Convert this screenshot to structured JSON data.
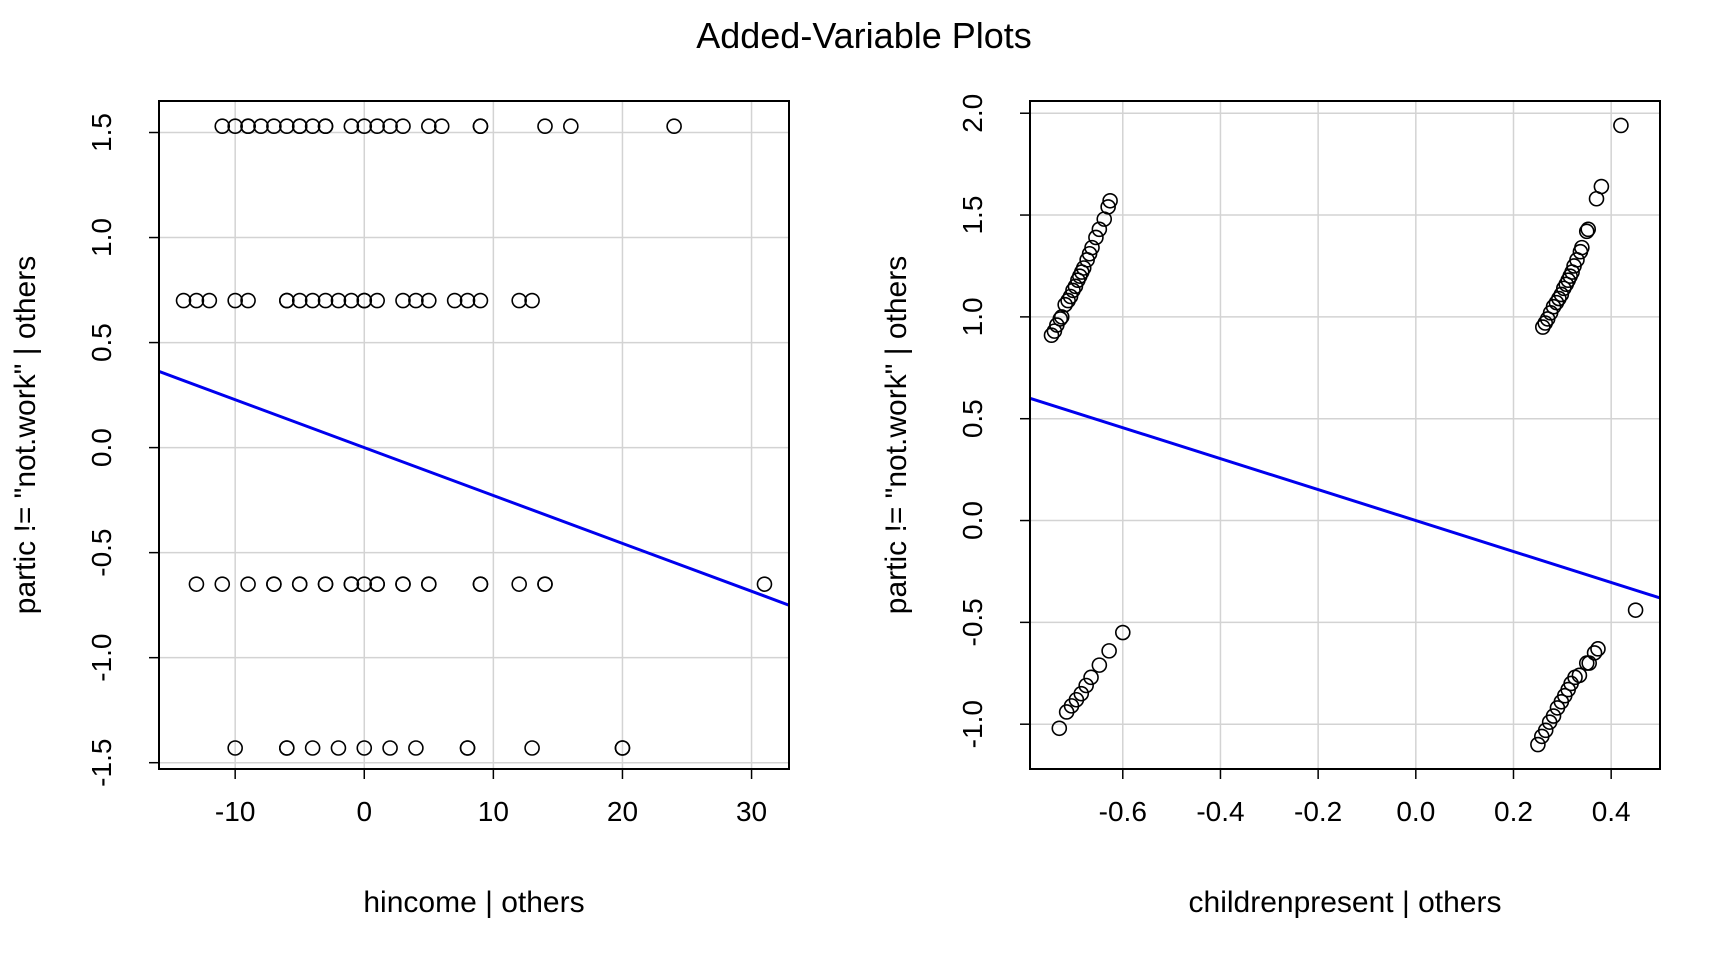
{
  "title": "Added-Variable Plots",
  "colors": {
    "line": "#0000ee",
    "points": "#000000",
    "grid": "#d3d3d3"
  },
  "chart_data": [
    {
      "type": "scatter",
      "xlabel": "hincome | others",
      "ylabel": "partic != \"not.work\"  | others",
      "xlim": [
        -15.9,
        32.9
      ],
      "ylim": [
        -1.53,
        1.65
      ],
      "xticks": [
        -10,
        0,
        10,
        20,
        30
      ],
      "yticks": [
        -1.5,
        -1.0,
        -0.5,
        0.0,
        0.5,
        1.0,
        1.5
      ],
      "xtick_labels": [
        "-10",
        "0",
        "10",
        "20",
        "30"
      ],
      "ytick_labels": [
        "-1.5",
        "-1.0",
        "-0.5",
        "0.0",
        "0.5",
        "1.0",
        "1.5"
      ],
      "grid": true,
      "fit_line": {
        "slope": -0.0228,
        "intercept": 0.0
      },
      "points": [
        [
          -11,
          1.53
        ],
        [
          -10,
          1.53
        ],
        [
          -9,
          1.53
        ],
        [
          -9,
          1.53
        ],
        [
          -8,
          1.53
        ],
        [
          -7,
          1.53
        ],
        [
          -6,
          1.53
        ],
        [
          -5,
          1.53
        ],
        [
          -5,
          1.53
        ],
        [
          -4,
          1.53
        ],
        [
          -3,
          1.53
        ],
        [
          -3,
          1.53
        ],
        [
          -1,
          1.53
        ],
        [
          0,
          1.53
        ],
        [
          1,
          1.53
        ],
        [
          2,
          1.53
        ],
        [
          3,
          1.53
        ],
        [
          5,
          1.53
        ],
        [
          6,
          1.53
        ],
        [
          9,
          1.53
        ],
        [
          9,
          1.53
        ],
        [
          14,
          1.53
        ],
        [
          16,
          1.53
        ],
        [
          24,
          1.53
        ],
        [
          -14,
          0.7
        ],
        [
          -13,
          0.7
        ],
        [
          -12,
          0.7
        ],
        [
          -10,
          0.7
        ],
        [
          -9,
          0.7
        ],
        [
          -6,
          0.7
        ],
        [
          -6,
          0.7
        ],
        [
          -5,
          0.7
        ],
        [
          -4,
          0.7
        ],
        [
          -3,
          0.7
        ],
        [
          -2,
          0.7
        ],
        [
          -1,
          0.7
        ],
        [
          0,
          0.7
        ],
        [
          0,
          0.7
        ],
        [
          1,
          0.7
        ],
        [
          3,
          0.7
        ],
        [
          4,
          0.7
        ],
        [
          5,
          0.7
        ],
        [
          7,
          0.7
        ],
        [
          8,
          0.7
        ],
        [
          9,
          0.7
        ],
        [
          12,
          0.7
        ],
        [
          13,
          0.7
        ],
        [
          -13,
          -0.65
        ],
        [
          -11,
          -0.65
        ],
        [
          -9,
          -0.65
        ],
        [
          -7,
          -0.65
        ],
        [
          -7,
          -0.65
        ],
        [
          -5,
          -0.65
        ],
        [
          -5,
          -0.65
        ],
        [
          -3,
          -0.65
        ],
        [
          -3,
          -0.65
        ],
        [
          -1,
          -0.65
        ],
        [
          -1,
          -0.65
        ],
        [
          0,
          -0.65
        ],
        [
          1,
          -0.65
        ],
        [
          1,
          -0.65
        ],
        [
          3,
          -0.65
        ],
        [
          3,
          -0.65
        ],
        [
          5,
          -0.65
        ],
        [
          5,
          -0.65
        ],
        [
          9,
          -0.65
        ],
        [
          9,
          -0.65
        ],
        [
          12,
          -0.65
        ],
        [
          14,
          -0.65
        ],
        [
          14,
          -0.65
        ],
        [
          31,
          -0.65
        ],
        [
          -10,
          -1.43
        ],
        [
          -6,
          -1.43
        ],
        [
          -6,
          -1.43
        ],
        [
          -4,
          -1.43
        ],
        [
          -2,
          -1.43
        ],
        [
          0,
          -1.43
        ],
        [
          2,
          -1.43
        ],
        [
          4,
          -1.43
        ],
        [
          8,
          -1.43
        ],
        [
          8,
          -1.43
        ],
        [
          13,
          -1.43
        ],
        [
          20,
          -1.43
        ],
        [
          20,
          -1.43
        ]
      ]
    },
    {
      "type": "scatter",
      "xlabel": "childrenpresent | others",
      "ylabel": "partic != \"not.work\"  | others",
      "xlim": [
        -0.79,
        0.5
      ],
      "ylim": [
        -1.22,
        2.06
      ],
      "xticks": [
        -0.6,
        -0.4,
        -0.2,
        0.0,
        0.2,
        0.4
      ],
      "yticks": [
        -1.0,
        -0.5,
        0.0,
        0.5,
        1.0,
        1.5,
        2.0
      ],
      "xtick_labels": [
        "-0.6",
        "-0.4",
        "-0.2",
        "0.0",
        "0.2",
        "0.4"
      ],
      "ytick_labels": [
        "-1.0",
        "-0.5",
        "0.0",
        "0.5",
        "1.0",
        "1.5",
        "2.0"
      ],
      "grid": true,
      "fit_line": {
        "slope": -0.76,
        "intercept": 0.0
      },
      "points": [
        [
          -0.746,
          0.91
        ],
        [
          -0.74,
          0.93
        ],
        [
          -0.735,
          0.96
        ],
        [
          -0.728,
          0.99
        ],
        [
          -0.725,
          1.0
        ],
        [
          -0.718,
          1.06
        ],
        [
          -0.712,
          1.08
        ],
        [
          -0.707,
          1.1
        ],
        [
          -0.702,
          1.13
        ],
        [
          -0.697,
          1.15
        ],
        [
          -0.692,
          1.18
        ],
        [
          -0.688,
          1.2
        ],
        [
          -0.684,
          1.22
        ],
        [
          -0.68,
          1.24
        ],
        [
          -0.673,
          1.28
        ],
        [
          -0.668,
          1.31
        ],
        [
          -0.663,
          1.34
        ],
        [
          -0.655,
          1.39
        ],
        [
          -0.648,
          1.43
        ],
        [
          -0.638,
          1.48
        ],
        [
          -0.63,
          1.54
        ],
        [
          -0.626,
          1.57
        ],
        [
          0.26,
          0.95
        ],
        [
          0.265,
          0.97
        ],
        [
          0.27,
          0.99
        ],
        [
          0.276,
          1.02
        ],
        [
          0.282,
          1.05
        ],
        [
          0.288,
          1.07
        ],
        [
          0.293,
          1.09
        ],
        [
          0.298,
          1.11
        ],
        [
          0.303,
          1.14
        ],
        [
          0.308,
          1.16
        ],
        [
          0.312,
          1.18
        ],
        [
          0.316,
          1.2
        ],
        [
          0.32,
          1.22
        ],
        [
          0.324,
          1.25
        ],
        [
          0.33,
          1.28
        ],
        [
          0.337,
          1.32
        ],
        [
          0.34,
          1.34
        ],
        [
          0.35,
          1.42
        ],
        [
          0.353,
          1.43
        ],
        [
          0.37,
          1.58
        ],
        [
          0.38,
          1.64
        ],
        [
          0.42,
          1.94
        ],
        [
          -0.73,
          -1.02
        ],
        [
          -0.715,
          -0.94
        ],
        [
          -0.705,
          -0.91
        ],
        [
          -0.695,
          -0.88
        ],
        [
          -0.685,
          -0.85
        ],
        [
          -0.675,
          -0.81
        ],
        [
          -0.665,
          -0.77
        ],
        [
          -0.648,
          -0.71
        ],
        [
          -0.628,
          -0.64
        ],
        [
          -0.6,
          -0.55
        ],
        [
          0.25,
          -1.1
        ],
        [
          0.258,
          -1.06
        ],
        [
          0.266,
          -1.03
        ],
        [
          0.274,
          -0.99
        ],
        [
          0.282,
          -0.96
        ],
        [
          0.29,
          -0.92
        ],
        [
          0.298,
          -0.89
        ],
        [
          0.305,
          -0.86
        ],
        [
          0.312,
          -0.83
        ],
        [
          0.318,
          -0.8
        ],
        [
          0.326,
          -0.77
        ],
        [
          0.335,
          -0.76
        ],
        [
          0.35,
          -0.7
        ],
        [
          0.355,
          -0.7
        ],
        [
          0.366,
          -0.65
        ],
        [
          0.373,
          -0.63
        ],
        [
          0.45,
          -0.44
        ]
      ]
    }
  ]
}
